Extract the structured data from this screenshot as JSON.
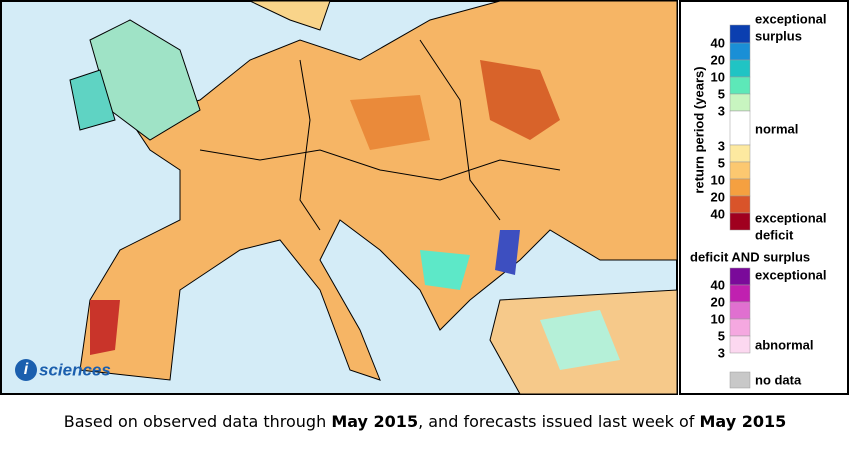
{
  "logo": {
    "icon": "i",
    "text": "sciences"
  },
  "legend": {
    "axis_label": "return period (years)",
    "surplus_top": [
      "exceptional",
      "surplus"
    ],
    "surplus_ticks": [
      40,
      20,
      10,
      5,
      3
    ],
    "normal": "normal",
    "deficit_ticks": [
      3,
      5,
      10,
      20,
      40
    ],
    "deficit_bottom": [
      "exceptional",
      "deficit"
    ],
    "both_title": "deficit AND surplus",
    "both_top": "exceptional",
    "both_ticks": [
      40,
      20,
      10,
      5,
      3
    ],
    "both_bottom": "abnormal",
    "no_data": "no data"
  },
  "caption": {
    "part1": "Based on observed data through ",
    "date1": "May 2015",
    "part2": ", and forecasts issued last week of ",
    "date2": "May 2015"
  }
}
